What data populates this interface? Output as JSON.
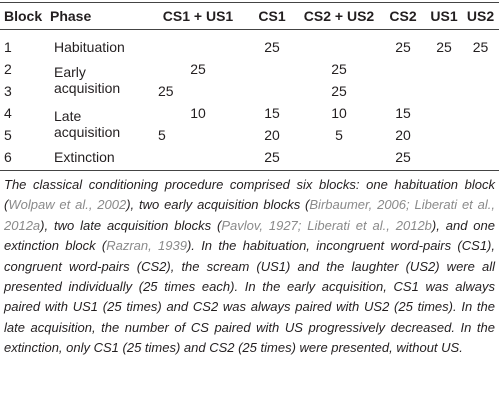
{
  "table": {
    "columns": [
      "Block",
      "Phase",
      "CS1 + US1",
      "CS1",
      "CS2 + US2",
      "CS2",
      "US1",
      "US2"
    ],
    "rows": [
      [
        1,
        "Habituation",
        null,
        25,
        null,
        25,
        25,
        25
      ],
      [
        2,
        "Early acquisition",
        25,
        null,
        25,
        null,
        null,
        null
      ],
      [
        3,
        null,
        25,
        null,
        25,
        null,
        null,
        null
      ],
      [
        4,
        "Late acquisition",
        10,
        15,
        10,
        15,
        null,
        null
      ],
      [
        5,
        null,
        5,
        20,
        5,
        20,
        null,
        null
      ],
      [
        6,
        "Extinction",
        null,
        25,
        null,
        25,
        null,
        null
      ]
    ]
  },
  "caption": [
    {
      "text": "The classical conditioning procedure comprised six blocks: one habituation block ("
    },
    {
      "cite": "Wolpaw et al., 2002"
    },
    {
      "text": "), two early acquisition blocks ("
    },
    {
      "cite": "Birbaumer, 2006; Liberati et al., 2012a"
    },
    {
      "text": "), two late acquisition blocks ("
    },
    {
      "cite": "Pavlov, 1927; Liberati et al., 2012b"
    },
    {
      "text": "), and one extinction block ("
    },
    {
      "cite": "Razran, 1939"
    },
    {
      "text": "). In the habituation, incongruent word-pairs (CS1), congruent word-pairs (CS2), the scream (US1) and the laughter (US2) were all presented individually (25 times each). In the early acquisition, CS1 was always paired with US1 (25 times) and CS2 was always paired with US2 (25 times). In the late acquisition, the number of CS paired with US progressively decreased. In the extinction, only CS1 (25 times) and CS2 (25 times) were presented, without US."
    }
  ]
}
